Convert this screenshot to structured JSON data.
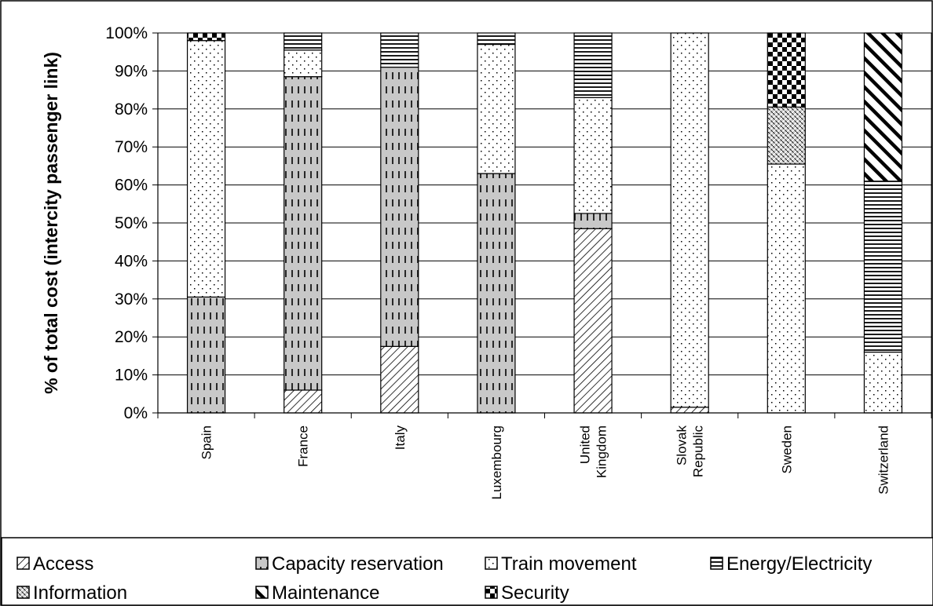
{
  "chart_data": {
    "type": "bar",
    "stacked": true,
    "ylabel": "% of total cost (intercity passenger link)",
    "xlabel": "",
    "ylim": [
      0,
      100
    ],
    "yticks": [
      "0%",
      "10%",
      "20%",
      "30%",
      "40%",
      "50%",
      "60%",
      "70%",
      "80%",
      "90%",
      "100%"
    ],
    "categories": [
      "Spain",
      "France",
      "Italy",
      "Luxembourg",
      "United Kingdom",
      "Slovak Republic",
      "Sweden",
      "Switzerland"
    ],
    "category_lines": [
      [
        "Spain"
      ],
      [
        "France"
      ],
      [
        "Italy"
      ],
      [
        "Luxembourg"
      ],
      [
        "United",
        "Kingdom"
      ],
      [
        "Slovak",
        "Republic"
      ],
      [
        "Sweden"
      ],
      [
        "Switzerland"
      ]
    ],
    "legend_position": "bottom",
    "grid": true,
    "series": [
      {
        "name": "Access",
        "pattern": "diag",
        "values": [
          0,
          6,
          17.5,
          0,
          48.5,
          1.5,
          0,
          0
        ]
      },
      {
        "name": "Capacity reservation",
        "pattern": "dash",
        "values": [
          30.5,
          82.5,
          73.5,
          63,
          4,
          0,
          0,
          0
        ]
      },
      {
        "name": "Train movement",
        "pattern": "dots",
        "values": [
          67.5,
          7,
          0,
          34,
          30.5,
          98.5,
          65.5,
          16
        ]
      },
      {
        "name": "Energy/Electricity",
        "pattern": "hlines",
        "values": [
          0,
          4.5,
          9,
          3,
          17,
          0,
          0,
          45
        ]
      },
      {
        "name": "Information",
        "pattern": "cross",
        "values": [
          0,
          0,
          0,
          0,
          0,
          0,
          15,
          0
        ]
      },
      {
        "name": "Maintenance",
        "pattern": "bdiag",
        "values": [
          0,
          0,
          0,
          0,
          0,
          0,
          0,
          39
        ]
      },
      {
        "name": "Security",
        "pattern": "checker",
        "values": [
          2,
          0,
          0,
          0,
          0,
          0,
          19.5,
          0
        ]
      }
    ]
  }
}
